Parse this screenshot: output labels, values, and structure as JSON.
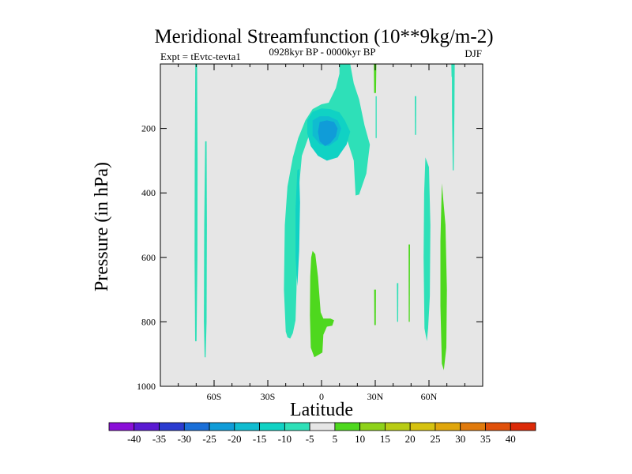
{
  "chart_data": {
    "type": "contour",
    "title": "Meridional Streamfunction (10**9kg/m-2)",
    "subtitle_left": "Expt = tEvtc-tevta1",
    "subtitle_center": "0928kyr BP - 0000kyr BP",
    "subtitle_right": "DJF",
    "xlabel": "Latitude",
    "ylabel": "Pressure (in hPa)",
    "xlim": [
      -90,
      90
    ],
    "ylim": [
      1000,
      0
    ],
    "x_ticks": [
      {
        "value": -60,
        "label": "60S"
      },
      {
        "value": -30,
        "label": "30S"
      },
      {
        "value": 0,
        "label": "0"
      },
      {
        "value": 30,
        "label": "30N"
      },
      {
        "value": 60,
        "label": "60N"
      }
    ],
    "y_ticks": [
      {
        "value": 200,
        "label": "200"
      },
      {
        "value": 400,
        "label": "400"
      },
      {
        "value": 600,
        "label": "600"
      },
      {
        "value": 800,
        "label": "800"
      },
      {
        "value": 1000,
        "label": "1000"
      }
    ],
    "background_color": "#e6e6e6",
    "colorbar": {
      "labels": [
        "-40",
        "-35",
        "-30",
        "-25",
        "-20",
        "-15",
        "-10",
        "-5",
        "5",
        "10",
        "15",
        "20",
        "25",
        "30",
        "35",
        "40"
      ],
      "colors": [
        "#8a0fd8",
        "#5a1ad2",
        "#2a3bd0",
        "#1a6fd8",
        "#109cd8",
        "#10bcd0",
        "#10d2c4",
        "#2ee0b8",
        "#e6e6e6",
        "#4ed81e",
        "#8ed21a",
        "#b8cc14",
        "#d6c210",
        "#e0a60c",
        "#e07a0c",
        "#e0500a",
        "#dc2a08"
      ]
    },
    "regions": [
      {
        "level": -5,
        "color": "#2ee0b8",
        "outline": [
          [
            -70.5,
            0
          ],
          [
            -69.5,
            0
          ],
          [
            -69.2,
            300
          ],
          [
            -69.3,
            600
          ],
          [
            -69.8,
            860
          ],
          [
            -70.6,
            860
          ],
          [
            -70.9,
            600
          ],
          [
            -70.8,
            300
          ]
        ]
      },
      {
        "level": -5,
        "color": "#2ee0b8",
        "outline": [
          [
            -65,
            240
          ],
          [
            -64.2,
            240
          ],
          [
            -64,
            500
          ],
          [
            -64.2,
            800
          ],
          [
            -64.7,
            910
          ],
          [
            -65.3,
            910
          ],
          [
            -65.7,
            800
          ],
          [
            -65.5,
            500
          ]
        ]
      },
      {
        "level": -5,
        "color": "#2ee0b8",
        "outline": [
          [
            -20,
            830
          ],
          [
            -21,
            700
          ],
          [
            -20.5,
            500
          ],
          [
            -19,
            380
          ],
          [
            -16,
            290
          ],
          [
            -13,
            230
          ],
          [
            -9,
            175
          ],
          [
            -5,
            140
          ],
          [
            0,
            125
          ],
          [
            4,
            120
          ],
          [
            8,
            75
          ],
          [
            10,
            30
          ],
          [
            10,
            0
          ],
          [
            16,
            0
          ],
          [
            18,
            60
          ],
          [
            21,
            110
          ],
          [
            24,
            190
          ],
          [
            27,
            250
          ],
          [
            25,
            340
          ],
          [
            21,
            405
          ],
          [
            19,
            408
          ],
          [
            18,
            300
          ],
          [
            14,
            230
          ],
          [
            9,
            205
          ],
          [
            3,
            190
          ],
          [
            -2,
            192
          ],
          [
            -7,
            222
          ],
          [
            -11,
            285
          ],
          [
            -13,
            410
          ],
          [
            -13.5,
            560
          ],
          [
            -14,
            700
          ],
          [
            -14.5,
            795
          ],
          [
            -16,
            835
          ],
          [
            -17.5,
            852
          ],
          [
            -19,
            848
          ]
        ]
      },
      {
        "level": -10,
        "color": "#10d2c4",
        "outline": [
          [
            -8,
            175
          ],
          [
            -5,
            148
          ],
          [
            0,
            138
          ],
          [
            5,
            140
          ],
          [
            10,
            150
          ],
          [
            13,
            175
          ],
          [
            16,
            210
          ],
          [
            14,
            250
          ],
          [
            9,
            290
          ],
          [
            3,
            300
          ],
          [
            -2,
            285
          ],
          [
            -6,
            255
          ],
          [
            -8,
            215
          ]
        ]
      },
      {
        "level": -10,
        "color": "#10d2c4",
        "outline": [
          [
            -13.5,
            330
          ],
          [
            -12.5,
            325
          ],
          [
            -12,
            430
          ],
          [
            -12.5,
            580
          ],
          [
            -13.5,
            690
          ],
          [
            -14.5,
            600
          ],
          [
            -14.5,
            450
          ]
        ]
      },
      {
        "level": -15,
        "color": "#10bcd0",
        "outline": [
          [
            -5,
            175
          ],
          [
            -1,
            162
          ],
          [
            4,
            162
          ],
          [
            9,
            175
          ],
          [
            11,
            200
          ],
          [
            9,
            235
          ],
          [
            4,
            255
          ],
          [
            -1,
            248
          ],
          [
            -5,
            222
          ]
        ]
      },
      {
        "level": -20,
        "color": "#109cd8",
        "outline": [
          [
            -1,
            180
          ],
          [
            3,
            175
          ],
          [
            7,
            180
          ],
          [
            9,
            200
          ],
          [
            8,
            225
          ],
          [
            5,
            245
          ],
          [
            2,
            255
          ],
          [
            -1,
            240
          ],
          [
            -2,
            210
          ]
        ]
      },
      {
        "level": 5,
        "color": "#4ed81e",
        "outline": [
          [
            -5,
            580
          ],
          [
            -3.5,
            590
          ],
          [
            -2,
            660
          ],
          [
            -0.5,
            770
          ],
          [
            1,
            790
          ],
          [
            5,
            790
          ],
          [
            7,
            795
          ],
          [
            6,
            812
          ],
          [
            3,
            815
          ],
          [
            1,
            840
          ],
          [
            0.5,
            895
          ],
          [
            -4,
            910
          ],
          [
            -6,
            880
          ],
          [
            -6.5,
            780
          ],
          [
            -6.3,
            660
          ],
          [
            -5.8,
            600
          ]
        ]
      },
      {
        "level": 5,
        "color": "#4ed81e",
        "outline": [
          [
            29.2,
            0
          ],
          [
            30.6,
            0
          ],
          [
            30.4,
            90
          ],
          [
            29.4,
            90
          ]
        ]
      },
      {
        "level": 5,
        "color": "#4ed81e",
        "outline": [
          [
            29.4,
            700
          ],
          [
            30.4,
            700
          ],
          [
            30.3,
            810
          ],
          [
            29.5,
            810
          ]
        ]
      },
      {
        "level": -5,
        "color": "#2ee0b8",
        "outline": [
          [
            30.2,
            100
          ],
          [
            30.8,
            100
          ],
          [
            30.8,
            230
          ],
          [
            30.2,
            230
          ]
        ]
      },
      {
        "level": -5,
        "color": "#2ee0b8",
        "outline": [
          [
            52.1,
            100
          ],
          [
            52.9,
            100
          ],
          [
            52.8,
            220
          ],
          [
            52.2,
            220
          ]
        ]
      },
      {
        "level": -5,
        "color": "#2ee0b8",
        "outline": [
          [
            42.1,
            680
          ],
          [
            42.9,
            680
          ],
          [
            42.8,
            800
          ],
          [
            42.2,
            800
          ]
        ]
      },
      {
        "level": 5,
        "color": "#4ed81e",
        "outline": [
          [
            48.6,
            560
          ],
          [
            49.4,
            560
          ],
          [
            49.3,
            800
          ],
          [
            48.7,
            800
          ]
        ]
      },
      {
        "level": -5,
        "color": "#2ee0b8",
        "outline": [
          [
            58,
            290
          ],
          [
            60,
            320
          ],
          [
            60.8,
            500
          ],
          [
            60.5,
            720
          ],
          [
            59.5,
            820
          ],
          [
            58.8,
            860
          ],
          [
            57.5,
            820
          ],
          [
            57,
            600
          ],
          [
            57.3,
            400
          ]
        ]
      },
      {
        "level": 5,
        "color": "#4ed81e",
        "outline": [
          [
            67.2,
            370
          ],
          [
            69.2,
            500
          ],
          [
            70,
            700
          ],
          [
            69.7,
            880
          ],
          [
            68.3,
            950
          ],
          [
            67.2,
            930
          ],
          [
            66.4,
            750
          ],
          [
            66.4,
            550
          ]
        ]
      },
      {
        "level": -5,
        "color": "#2ee0b8",
        "outline": [
          [
            72.8,
            0
          ],
          [
            74.4,
            0
          ],
          [
            74.2,
            150
          ],
          [
            73.8,
            330
          ],
          [
            73.3,
            330
          ],
          [
            72.9,
            150
          ]
        ]
      },
      {
        "level": -5,
        "color": "#2ee0b8",
        "outline": [
          [
            72.5,
            0
          ],
          [
            73.5,
            0
          ],
          [
            73.4,
            40
          ],
          [
            72.6,
            40
          ]
        ]
      }
    ]
  }
}
